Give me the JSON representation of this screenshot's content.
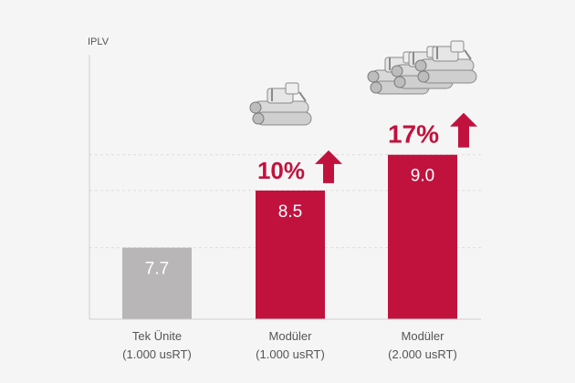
{
  "chart_data": {
    "type": "bar",
    "ylabel": "IPLV",
    "categories": [
      [
        "Tek Ünite",
        "(1.000 usRT)"
      ],
      [
        "Modüler",
        "(1.000 usRT)"
      ],
      [
        "Modüler",
        "(2.000 usRT)"
      ]
    ],
    "values": [
      7.7,
      8.5,
      9.0
    ],
    "value_labels": [
      "7.7",
      "8.5",
      "9.0"
    ],
    "increase_labels": [
      "",
      "10%",
      "17%"
    ],
    "ylim": [
      6.7,
      10.4
    ],
    "gridlines": [
      7.7,
      8.5,
      9.0
    ],
    "grid": true,
    "colors": {
      "baseline": "#b8b6b7",
      "highlight": "#c1123e",
      "axis": "#cfcfcf",
      "grid": "#dddddd",
      "text": "#555555",
      "value_text": "#ffffff"
    },
    "icons": [
      "",
      "chiller-unit-icon",
      "modular-chiller-bank-icon"
    ],
    "arrow_icon": "up-arrow-icon"
  }
}
